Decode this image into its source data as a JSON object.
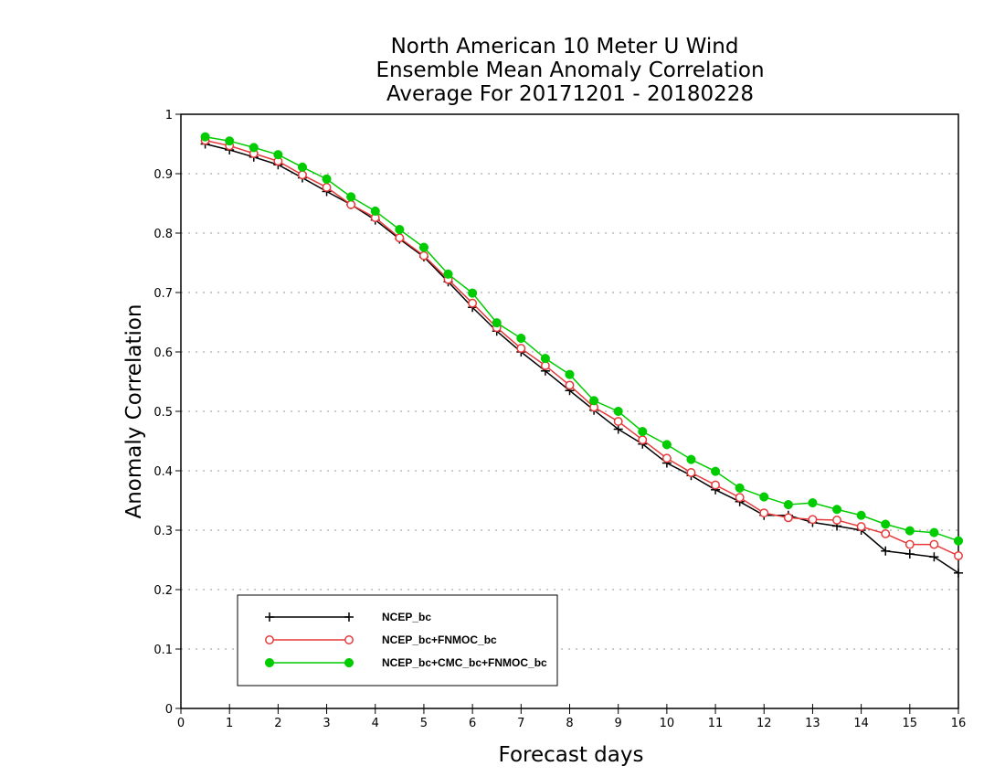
{
  "chart_data": {
    "type": "line",
    "title": [
      "North American 10 Meter U Wind",
      "Ensemble Mean Anomaly Correlation",
      "Average For 20171201 - 20180228"
    ],
    "xlabel": "Forecast days",
    "ylabel": "Anomaly Correlation",
    "xlim": [
      0,
      16
    ],
    "ylim": [
      0,
      1
    ],
    "xticks": [
      "0",
      "1",
      "2",
      "3",
      "4",
      "5",
      "6",
      "7",
      "8",
      "9",
      "10",
      "11",
      "12",
      "13",
      "14",
      "15",
      "16"
    ],
    "yticks": [
      "0",
      "0.1",
      "0.2",
      "0.3",
      "0.4",
      "0.5",
      "0.6",
      "0.7",
      "0.8",
      "0.9",
      "1"
    ],
    "grid": "horizontal-dotted",
    "legend_position": "bottom-left",
    "x": [
      0.5,
      1,
      1.5,
      2,
      2.5,
      3,
      3.5,
      4,
      4.5,
      5,
      5.5,
      6,
      6.5,
      7,
      7.5,
      8,
      8.5,
      9,
      9.5,
      10,
      10.5,
      11,
      11.5,
      12,
      12.5,
      13,
      13.5,
      14,
      14.5,
      15,
      15.5,
      16
    ],
    "series": [
      {
        "name": "NCEP_bc",
        "color": "#000000",
        "marker": "plus",
        "values": [
          0.95,
          0.94,
          0.928,
          0.915,
          0.893,
          0.87,
          0.848,
          0.822,
          0.79,
          0.76,
          0.718,
          0.675,
          0.635,
          0.6,
          0.568,
          0.535,
          0.502,
          0.47,
          0.445,
          0.413,
          0.392,
          0.368,
          0.348,
          0.325,
          0.325,
          0.313,
          0.307,
          0.3,
          0.265,
          0.26,
          0.255,
          0.228
        ]
      },
      {
        "name": "NCEP_bc+FNMOC_bc",
        "color": "#e83a3a",
        "marker": "open-circle",
        "values": [
          0.956,
          0.947,
          0.934,
          0.921,
          0.898,
          0.877,
          0.848,
          0.826,
          0.792,
          0.762,
          0.722,
          0.682,
          0.641,
          0.606,
          0.577,
          0.544,
          0.507,
          0.483,
          0.452,
          0.421,
          0.397,
          0.376,
          0.355,
          0.329,
          0.321,
          0.318,
          0.317,
          0.306,
          0.294,
          0.276,
          0.276,
          0.257
        ]
      },
      {
        "name": "NCEP_bc+CMC_bc+FNMOC_bc",
        "color": "#00cc00",
        "marker": "filled-circle",
        "values": [
          0.962,
          0.955,
          0.944,
          0.932,
          0.911,
          0.891,
          0.861,
          0.837,
          0.806,
          0.776,
          0.731,
          0.699,
          0.649,
          0.623,
          0.589,
          0.562,
          0.518,
          0.5,
          0.466,
          0.444,
          0.419,
          0.399,
          0.371,
          0.356,
          0.343,
          0.346,
          0.335,
          0.325,
          0.31,
          0.299,
          0.296,
          0.282
        ]
      }
    ]
  }
}
